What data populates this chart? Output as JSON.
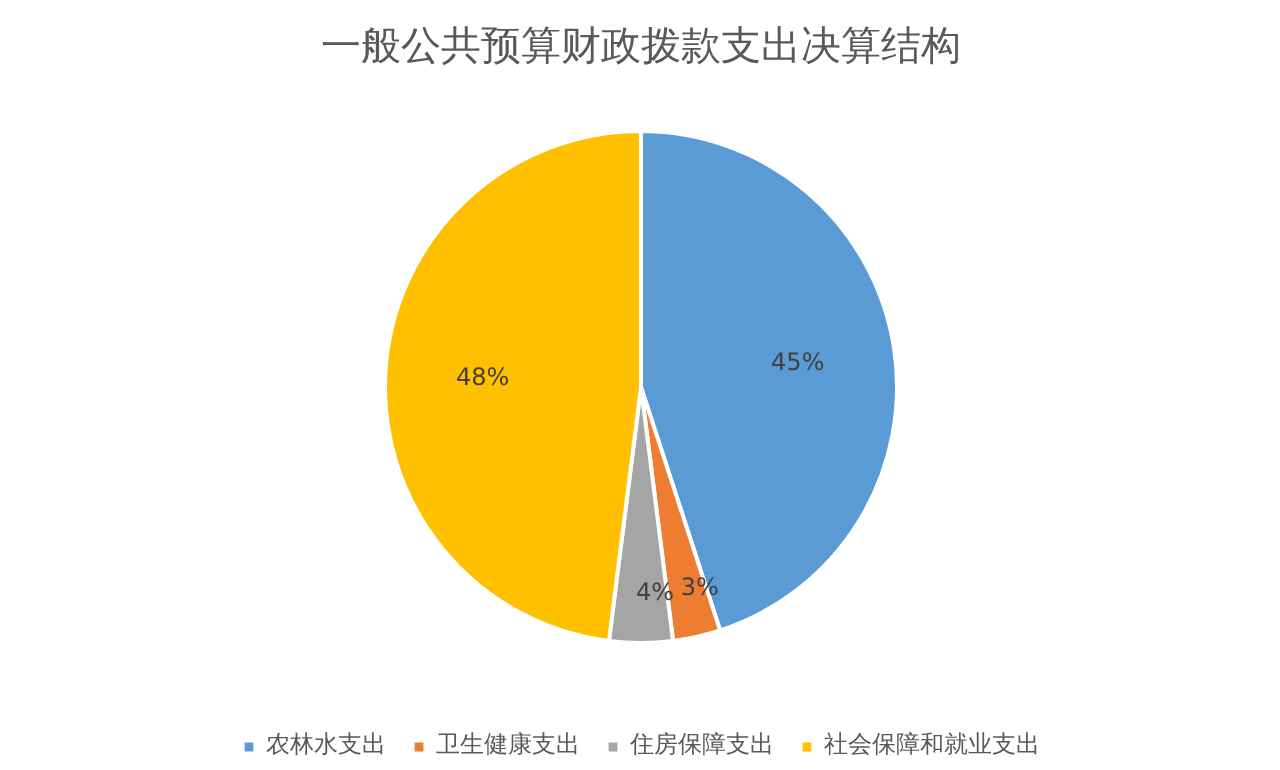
{
  "chart_data": {
    "type": "pie",
    "title": "一般公共预算财政拨款支出决算结构",
    "categories": [
      "农林水支出",
      "卫生健康支出",
      "住房保障支出",
      "社会保障和就业支出"
    ],
    "values": [
      45,
      3,
      4,
      48
    ],
    "colors": [
      "#5b9bd5",
      "#ed7d31",
      "#a5a5a5",
      "#ffc000"
    ],
    "value_labels": [
      "45%",
      "3%",
      "4%",
      "48%"
    ],
    "legend": "bottom"
  }
}
